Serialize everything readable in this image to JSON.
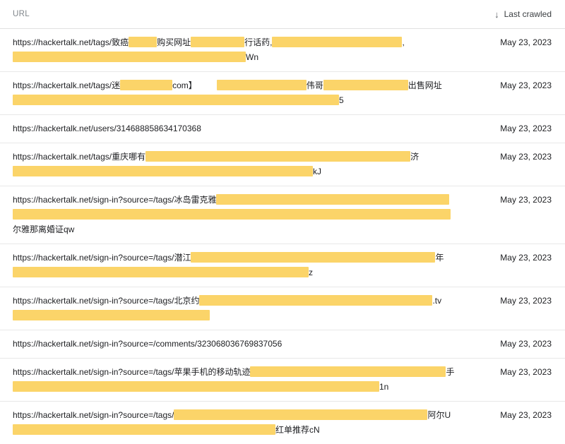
{
  "header": {
    "url_label": "URL",
    "last_crawled_label": "Last crawled",
    "sort_icon": "arrow-down",
    "sort_arrow_glyph": "↓"
  },
  "colors": {
    "highlight": "#FBD469",
    "divider": "#e8e8e8",
    "header_divider": "#e0e0e0",
    "text": "#202124",
    "muted_label": "#80868B"
  },
  "table": {
    "rows": [
      {
        "date": "May 23, 2023",
        "lines": [
          [
            {
              "t": "https://hackertalk.net/tags/致癌"
            },
            {
              "r": 40
            },
            {
              "t": "购买网址"
            },
            {
              "r": 76
            },
            {
              "t": "行话药,"
            },
            {
              "r": 184
            },
            {
              "t": ","
            }
          ],
          [
            {
              "r": 330
            },
            {
              "t": "Wn"
            }
          ]
        ]
      },
      {
        "date": "May 23, 2023",
        "lines": [
          [
            {
              "t": "https://hackertalk.net/tags/迷"
            },
            {
              "r": 74
            },
            {
              "t": "com】"
            },
            {
              "r": 127,
              "ml": 28
            },
            {
              "t": "伟哥"
            },
            {
              "r": 120
            },
            {
              "t": "出售网址"
            }
          ],
          [
            {
              "r": 462
            },
            {
              "t": "5"
            }
          ]
        ]
      },
      {
        "date": "May 23, 2023",
        "lines": [
          [
            {
              "t": "https://hackertalk.net/users/314688858634170368"
            }
          ]
        ]
      },
      {
        "date": "May 23, 2023",
        "lines": [
          [
            {
              "t": "https://hackertalk.net/tags/重庆哪有"
            },
            {
              "r": 375
            },
            {
              "t": "济"
            }
          ],
          [
            {
              "r": 425
            },
            {
              "t": "kJ"
            }
          ]
        ]
      },
      {
        "date": "May 23, 2023",
        "lines": [
          [
            {
              "t": "https://hackertalk.net/sign-in?source=/tags/冰岛雷克雅"
            },
            {
              "r": 330
            }
          ],
          [
            {
              "r": 620
            }
          ],
          [
            {
              "t": "尔雅那离婚证qw"
            }
          ]
        ]
      },
      {
        "date": "May 23, 2023",
        "lines": [
          [
            {
              "t": "https://hackertalk.net/sign-in?source=/tags/潜江"
            },
            {
              "r": 346
            },
            {
              "t": "年"
            }
          ],
          [
            {
              "r": 419
            },
            {
              "t": "z"
            }
          ]
        ]
      },
      {
        "date": "May 23, 2023",
        "lines": [
          [
            {
              "t": "https://hackertalk.net/sign-in?source=/tags/北京约"
            },
            {
              "r": 330
            },
            {
              "t": ".tv"
            }
          ],
          [
            {
              "r": 279
            }
          ]
        ]
      },
      {
        "date": "May 23, 2023",
        "lines": [
          [
            {
              "t": "https://hackertalk.net/sign-in?source=/comments/323068036769837056"
            }
          ]
        ]
      },
      {
        "date": "May 23, 2023",
        "lines": [
          [
            {
              "t": "https://hackertalk.net/sign-in?source=/tags/苹果手机的移动轨迹"
            },
            {
              "r": 277
            },
            {
              "t": "手"
            }
          ],
          [
            {
              "r": 519
            },
            {
              "t": "1n"
            }
          ]
        ]
      },
      {
        "date": "May 23, 2023",
        "lines": [
          [
            {
              "t": "https://hackertalk.net/sign-in?source=/tags/"
            },
            {
              "r": 359
            },
            {
              "t": "阿尔U"
            }
          ],
          [
            {
              "r": 372
            },
            {
              "t": "红单推荐cN"
            }
          ]
        ]
      }
    ]
  }
}
